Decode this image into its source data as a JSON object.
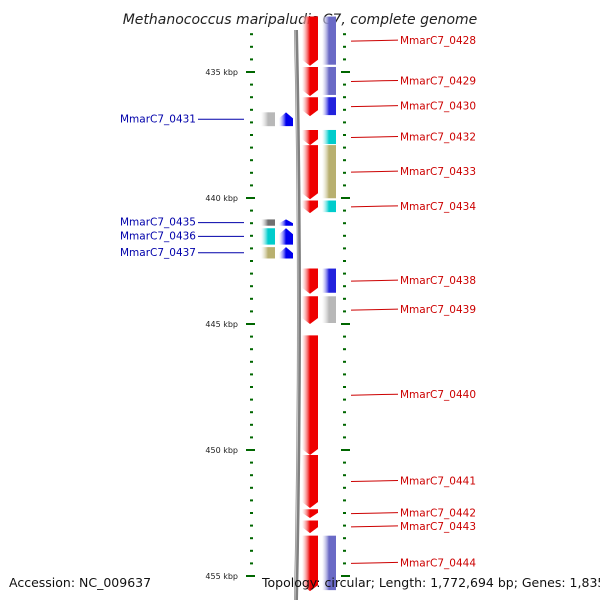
{
  "title": "Methanococcus maripaludis C7, complete genome",
  "accession": "Accession: NC_009637",
  "topology": "Topology: circular; Length: 1,772,694 bp; Genes: 1,835",
  "scale_labels": [
    {
      "text": "435 kbp",
      "kbp": 435
    },
    {
      "text": "440 kbp",
      "kbp": 440
    },
    {
      "text": "445 kbp",
      "kbp": 445
    },
    {
      "text": "450 kbp",
      "kbp": 450
    },
    {
      "text": "455 kbp",
      "kbp": 455
    }
  ],
  "colors": {
    "forward_gene": "#ee0000",
    "reverse_gene": "#0000ee",
    "backbone": "#808080",
    "scale": "#006600",
    "right_label": "#cc0000",
    "left_label": "#0000aa",
    "cog_purple": "#6a6ac6",
    "cog_cyan": "#00cccc",
    "cog_khaki": "#b8b070",
    "cog_grey": "#b8b8b8",
    "cog_darkgrey": "#707070",
    "cog_blue": "#2222dd"
  },
  "right_genes": [
    {
      "name": "MmarC7_0428",
      "start": 432.8,
      "end": 434.75,
      "cog": "cog_purple"
    },
    {
      "name": "MmarC7_0429",
      "start": 434.8,
      "end": 435.95,
      "cog": "cog_purple"
    },
    {
      "name": "MmarC7_0430",
      "start": 436.0,
      "end": 436.75,
      "cog": "cog_blue"
    },
    {
      "name": "MmarC7_0432",
      "start": 437.3,
      "end": 437.9,
      "cog": "cog_cyan"
    },
    {
      "name": "MmarC7_0433",
      "start": 437.9,
      "end": 440.05,
      "cog": "cog_khaki"
    },
    {
      "name": "MmarC7_0434",
      "start": 440.1,
      "end": 440.6,
      "cog": "cog_cyan"
    },
    {
      "name": "MmarC7_0438",
      "start": 442.8,
      "end": 443.8,
      "cog": "cog_blue"
    },
    {
      "name": "MmarC7_0439",
      "start": 443.9,
      "end": 445.0,
      "cog": "cog_grey"
    },
    {
      "name": "MmarC7_0440",
      "start": 445.45,
      "end": 450.2,
      "cog": null
    },
    {
      "name": "MmarC7_0441",
      "start": 450.2,
      "end": 452.3,
      "cog": null
    },
    {
      "name": "MmarC7_0442",
      "start": 452.35,
      "end": 452.7,
      "cog": null
    },
    {
      "name": "MmarC7_0443",
      "start": 452.8,
      "end": 453.3,
      "cog": null
    },
    {
      "name": "MmarC7_0444",
      "start": 453.4,
      "end": 455.6,
      "cog": "cog_purple"
    }
  ],
  "left_genes": [
    {
      "name": "MmarC7_0431",
      "start": 436.6,
      "end": 437.15,
      "cog": "cog_grey"
    },
    {
      "name": "MmarC7_0435",
      "start": 440.85,
      "end": 441.1,
      "cog": "cog_darkgrey"
    },
    {
      "name": "MmarC7_0436",
      "start": 441.2,
      "end": 441.85,
      "cog": "cog_cyan"
    },
    {
      "name": "MmarC7_0437",
      "start": 441.95,
      "end": 442.4,
      "cog": "cog_khaki"
    }
  ]
}
